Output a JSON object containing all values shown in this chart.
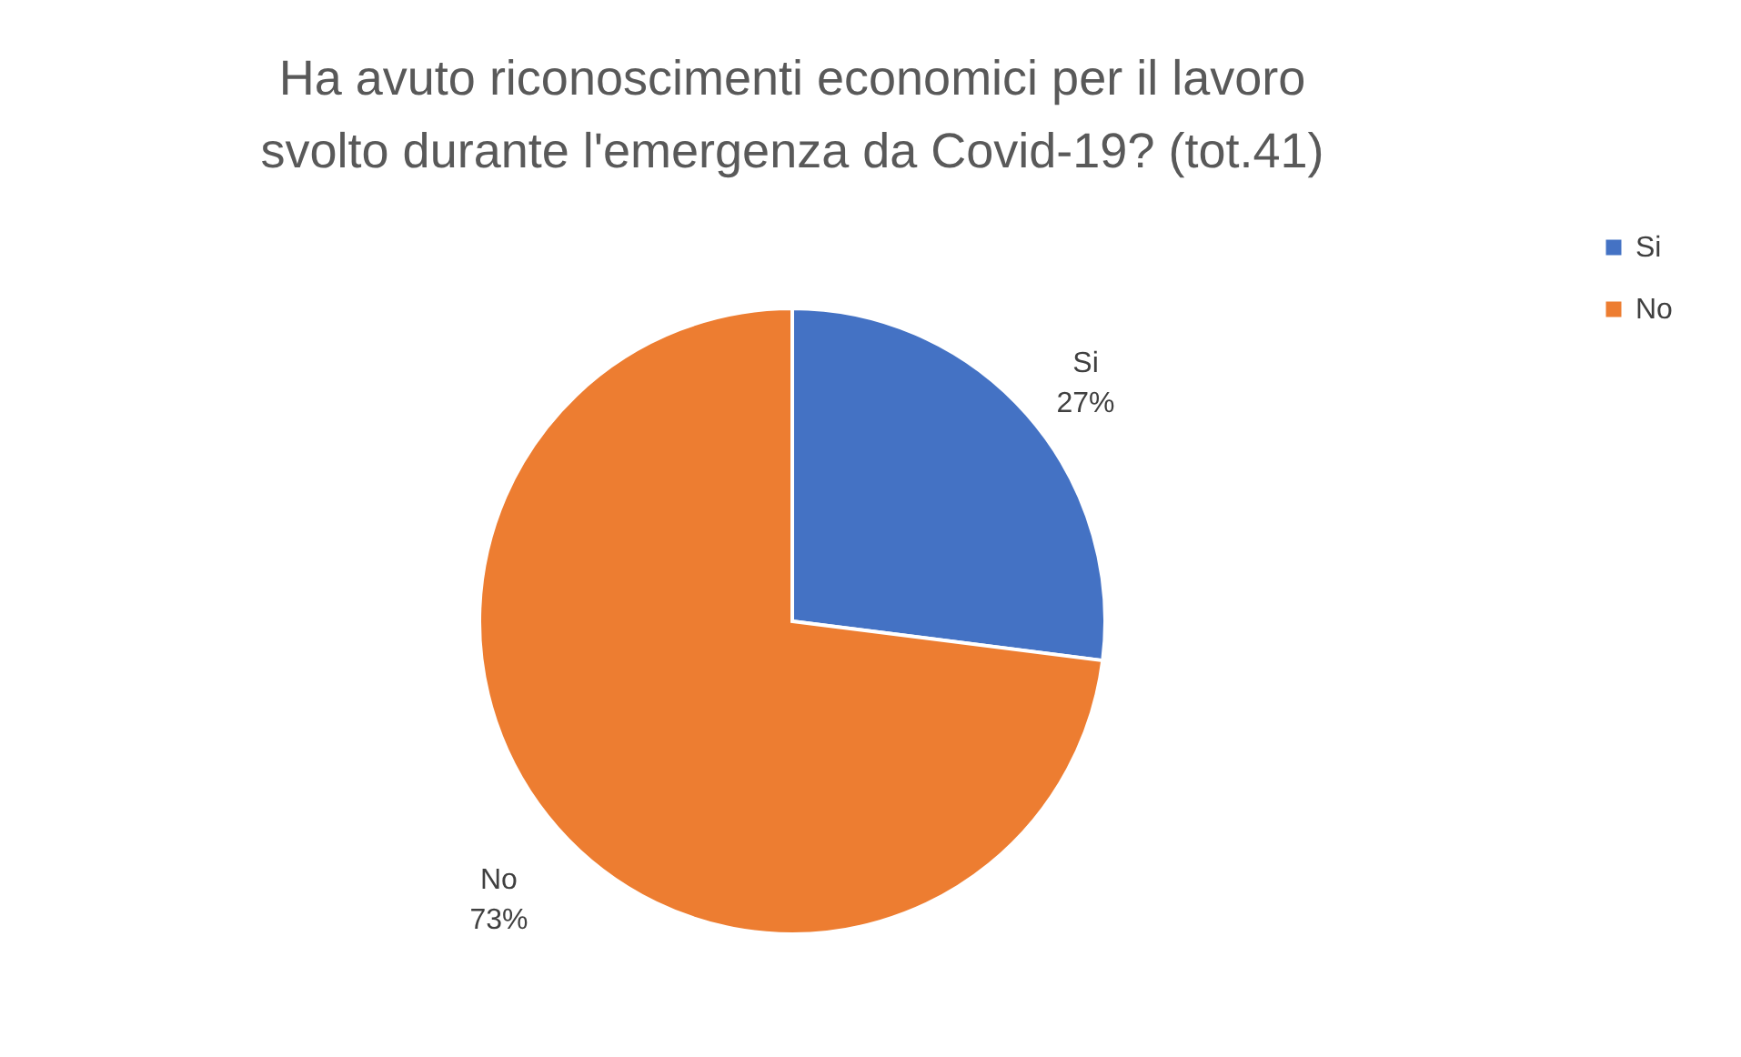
{
  "chart_data": {
    "type": "pie",
    "title": "Ha avuto riconoscimenti economici per il lavoro\nsvolto durante l'emergenza da Covid-19?  (tot.41)",
    "categories": [
      "Si",
      "No"
    ],
    "values": [
      27,
      73
    ],
    "colors": [
      "#4472c4",
      "#ed7d31"
    ],
    "value_labels": [
      "27%",
      "73%"
    ],
    "legend": "right"
  }
}
